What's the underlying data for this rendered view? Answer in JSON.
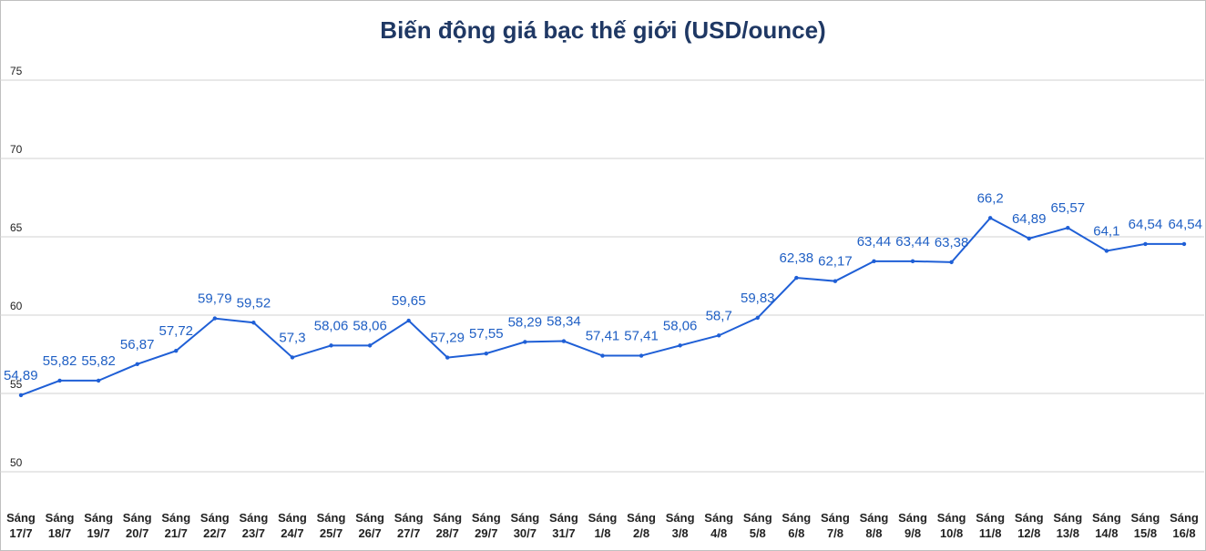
{
  "chart_data": {
    "type": "line",
    "title": "Biến động giá bạc thế giới (USD/ounce)",
    "xlabel": "",
    "ylabel": "",
    "ylim": [
      50,
      75
    ],
    "yticks": [
      50,
      55,
      60,
      65,
      70,
      75
    ],
    "grid": true,
    "legend": "none",
    "categories": [
      [
        "Sáng",
        "17/7"
      ],
      [
        "Sáng",
        "18/7"
      ],
      [
        "Sáng",
        "19/7"
      ],
      [
        "Sáng",
        "20/7"
      ],
      [
        "Sáng",
        "21/7"
      ],
      [
        "Sáng",
        "22/7"
      ],
      [
        "Sáng",
        "23/7"
      ],
      [
        "Sáng",
        "24/7"
      ],
      [
        "Sáng",
        "25/7"
      ],
      [
        "Sáng",
        "26/7"
      ],
      [
        "Sáng",
        "27/7"
      ],
      [
        "Sáng",
        "28/7"
      ],
      [
        "Sáng",
        "29/7"
      ],
      [
        "Sáng",
        "30/7"
      ],
      [
        "Sáng",
        "31/7"
      ],
      [
        "Sáng",
        "1/8"
      ],
      [
        "Sáng",
        "2/8"
      ],
      [
        "Sáng",
        "3/8"
      ],
      [
        "Sáng",
        "4/8"
      ],
      [
        "Sáng",
        "5/8"
      ],
      [
        "Sáng",
        "6/8"
      ],
      [
        "Sáng",
        "7/8"
      ],
      [
        "Sáng",
        "8/8"
      ],
      [
        "Sáng",
        "9/8"
      ],
      [
        "Sáng",
        "10/8"
      ],
      [
        "Sáng",
        "11/8"
      ],
      [
        "Sáng",
        "12/8"
      ],
      [
        "Sáng",
        "13/8"
      ],
      [
        "Sáng",
        "14/8"
      ],
      [
        "Sáng",
        "15/8"
      ],
      [
        "Sáng",
        "16/8"
      ]
    ],
    "series": [
      {
        "values": [
          54.89,
          55.82,
          55.82,
          56.87,
          57.72,
          59.79,
          59.52,
          57.3,
          58.06,
          58.06,
          59.65,
          57.29,
          57.55,
          58.29,
          58.34,
          57.41,
          57.41,
          58.06,
          58.7,
          59.83,
          62.38,
          62.17,
          63.44,
          63.44,
          63.38,
          66.2,
          64.89,
          65.57,
          64.1,
          64.54,
          64.54
        ],
        "labels": [
          "54,89",
          "55,82",
          "55,82",
          "56,87",
          "57,72",
          "59,79",
          "59,52",
          "57,3",
          "58,06",
          "58,06",
          "59,65",
          "57,29",
          "57,55",
          "58,29",
          "58,34",
          "57,41",
          "57,41",
          "58,06",
          "58,7",
          "59,83",
          "62,38",
          "62,17",
          "63,44",
          "63,44",
          "63,38",
          "66,2",
          "64,89",
          "65,57",
          "64,1",
          "64,54",
          "64,54"
        ],
        "color": "#1f5fd6"
      }
    ]
  },
  "colors": {
    "title": "#1f3864",
    "line": "#1f5fd6",
    "label": "#1f5fc4",
    "grid": "#d0d0d0"
  }
}
